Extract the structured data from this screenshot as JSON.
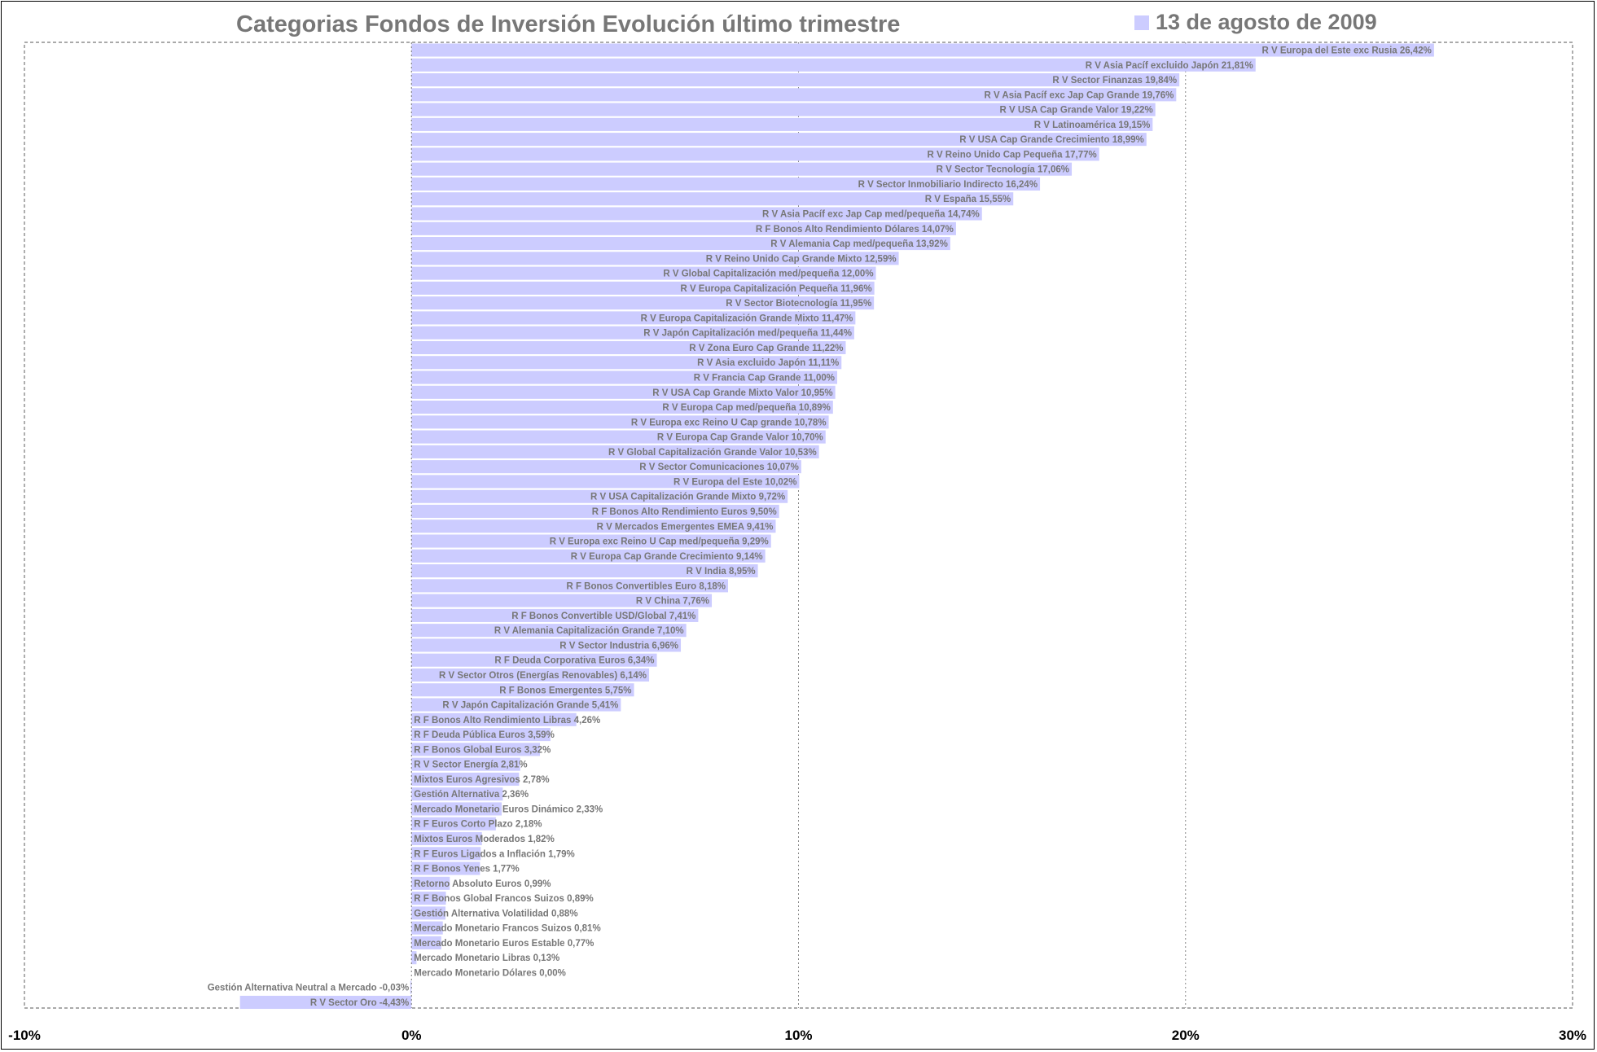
{
  "chart_data": {
    "type": "bar",
    "orientation": "horizontal",
    "title": "Categorias Fondos de Inversión Evolución último trimestre",
    "series_name": "13 de agosto de 2009",
    "bar_color": "#ccccff",
    "text_color": "#777777",
    "grid": true,
    "legend_position": "top-right",
    "xlim": [
      -10,
      30
    ],
    "x_ticks": [
      {
        "value": -10,
        "label": "-10%"
      },
      {
        "value": 0,
        "label": "0%"
      },
      {
        "value": 10,
        "label": "10%"
      },
      {
        "value": 20,
        "label": "20%"
      },
      {
        "value": 30,
        "label": "30%"
      }
    ],
    "bars": [
      {
        "label": "R V Europa del Este exc Rusia 26,42%",
        "value": 26.42
      },
      {
        "label": "R V Asia Pacíf excluido Japón 21,81%",
        "value": 21.81
      },
      {
        "label": "R V Sector Finanzas 19,84%",
        "value": 19.84
      },
      {
        "label": "R V Asia Pacíf exc Jap Cap Grande 19,76%",
        "value": 19.76
      },
      {
        "label": "R V USA Cap Grande Valor 19,22%",
        "value": 19.22
      },
      {
        "label": "R V Latinoamérica 19,15%",
        "value": 19.15
      },
      {
        "label": "R V USA Cap Grande Crecimiento 18,99%",
        "value": 18.99
      },
      {
        "label": "R V Reino Unido Cap Pequeña 17,77%",
        "value": 17.77
      },
      {
        "label": "R V Sector Tecnología 17,06%",
        "value": 17.06
      },
      {
        "label": "R V Sector Inmobiliario Indirecto 16,24%",
        "value": 16.24
      },
      {
        "label": "R V España 15,55%",
        "value": 15.55
      },
      {
        "label": "R V Asia Pacíf exc Jap Cap med/pequeña 14,74%",
        "value": 14.74
      },
      {
        "label": "R F Bonos Alto Rendimiento Dólares 14,07%",
        "value": 14.07
      },
      {
        "label": "R V Alemania Cap med/pequeña 13,92%",
        "value": 13.92
      },
      {
        "label": "R V Reino Unido Cap Grande Mixto 12,59%",
        "value": 12.59
      },
      {
        "label": "R V Global Capitalización med/pequeña 12,00%",
        "value": 12.0
      },
      {
        "label": "R V Europa Capitalización Pequeña 11,96%",
        "value": 11.96
      },
      {
        "label": "R V Sector Biotecnología 11,95%",
        "value": 11.95
      },
      {
        "label": "R V Europa Capitalización Grande Mixto 11,47%",
        "value": 11.47
      },
      {
        "label": "R V Japón Capitalización med/pequeña 11,44%",
        "value": 11.44
      },
      {
        "label": "R V Zona Euro Cap Grande 11,22%",
        "value": 11.22
      },
      {
        "label": "R V Asia excluido Japón 11,11%",
        "value": 11.11
      },
      {
        "label": "R V Francia Cap Grande 11,00%",
        "value": 11.0
      },
      {
        "label": "R V USA Cap Grande Mixto Valor 10,95%",
        "value": 10.95
      },
      {
        "label": "R V Europa Cap med/pequeña 10,89%",
        "value": 10.89
      },
      {
        "label": "R V Europa exc Reino U Cap grande 10,78%",
        "value": 10.78
      },
      {
        "label": "R V Europa Cap Grande Valor 10,70%",
        "value": 10.7
      },
      {
        "label": "R V Global Capitalización Grande Valor 10,53%",
        "value": 10.53
      },
      {
        "label": "R V Sector Comunicaciones 10,07%",
        "value": 10.07
      },
      {
        "label": "R V Europa del Este 10,02%",
        "value": 10.02
      },
      {
        "label": "R V USA Capitalización Grande Mixto 9,72%",
        "value": 9.72
      },
      {
        "label": "R F Bonos Alto Rendimiento Euros 9,50%",
        "value": 9.5
      },
      {
        "label": "R V Mercados Emergentes EMEA 9,41%",
        "value": 9.41
      },
      {
        "label": "R V Europa exc Reino U Cap med/pequeña 9,29%",
        "value": 9.29
      },
      {
        "label": "R V Europa Cap Grande Crecimiento 9,14%",
        "value": 9.14
      },
      {
        "label": "R V India 8,95%",
        "value": 8.95
      },
      {
        "label": "R F Bonos Convertibles Euro 8,18%",
        "value": 8.18
      },
      {
        "label": "R V China 7,76%",
        "value": 7.76
      },
      {
        "label": "R F Bonos Convertible USD/Global 7,41%",
        "value": 7.41
      },
      {
        "label": "R V Alemania Capitalización Grande 7,10%",
        "value": 7.1
      },
      {
        "label": "R V Sector Industria 6,96%",
        "value": 6.96
      },
      {
        "label": "R F Deuda Corporativa Euros 6,34%",
        "value": 6.34
      },
      {
        "label": "R V Sector Otros (Energías Renovables) 6,14%",
        "value": 6.14
      },
      {
        "label": "R F Bonos Emergentes 5,75%",
        "value": 5.75
      },
      {
        "label": "R V Japón Capitalización Grande 5,41%",
        "value": 5.41
      },
      {
        "label": "R F Bonos Alto Rendimiento Libras 4,26%",
        "value": 4.26
      },
      {
        "label": "R F Deuda Pública Euros 3,59%",
        "value": 3.59
      },
      {
        "label": "R F Bonos Global Euros 3,32%",
        "value": 3.32
      },
      {
        "label": "R V Sector Energía 2,81%",
        "value": 2.81
      },
      {
        "label": "Mixtos Euros Agresivos 2,78%",
        "value": 2.78
      },
      {
        "label": "Gestión Alternativa 2,36%",
        "value": 2.36
      },
      {
        "label": "Mercado Monetario Euros Dinámico 2,33%",
        "value": 2.33
      },
      {
        "label": "R F Euros Corto Plazo 2,18%",
        "value": 2.18
      },
      {
        "label": "Mixtos Euros Moderados 1,82%",
        "value": 1.82
      },
      {
        "label": "R F Euros Ligados a Inflación 1,79%",
        "value": 1.79
      },
      {
        "label": "R F Bonos Yenes 1,77%",
        "value": 1.77
      },
      {
        "label": "Retorno Absoluto Euros 0,99%",
        "value": 0.99
      },
      {
        "label": "R F Bonos Global Francos Suizos 0,89%",
        "value": 0.89
      },
      {
        "label": "Gestión Alternativa Volatilidad 0,88%",
        "value": 0.88
      },
      {
        "label": "Mercado Monetario Francos Suizos 0,81%",
        "value": 0.81
      },
      {
        "label": "Mercado Monetario Euros Estable 0,77%",
        "value": 0.77
      },
      {
        "label": "Mercado Monetario Libras 0,13%",
        "value": 0.13
      },
      {
        "label": "Mercado Monetario Dólares 0,00%",
        "value": 0.0
      },
      {
        "label": "Gestión Alternativa Neutral a Mercado -0,03%",
        "value": -0.03
      },
      {
        "label": "R V Sector Oro -4,43%",
        "value": -4.43
      }
    ]
  }
}
